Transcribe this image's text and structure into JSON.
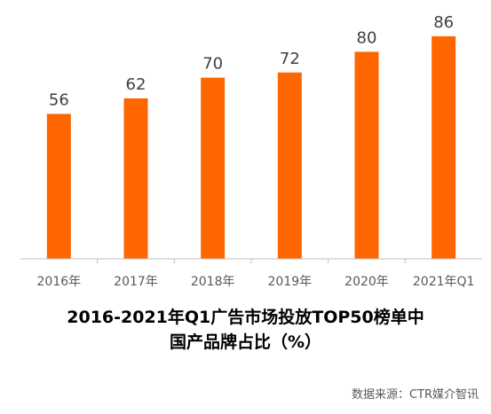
{
  "chart_data": {
    "type": "bar",
    "categories": [
      "2016年",
      "2017年",
      "2018年",
      "2019年",
      "2020年",
      "2021年Q1"
    ],
    "values": [
      56,
      62,
      70,
      72,
      80,
      86
    ],
    "data_labels": [
      "56",
      "62",
      "70",
      "72",
      "80",
      "86"
    ],
    "ylim": [
      0,
      100
    ],
    "grid": false,
    "legend": "none",
    "bar_color": "#FF6600",
    "title_line1": "2016-2021年Q1广告市场投放TOP50榜单中",
    "title_line2": "国产品牌占比（%）"
  },
  "source": "数据来源：CTR媒介智讯"
}
